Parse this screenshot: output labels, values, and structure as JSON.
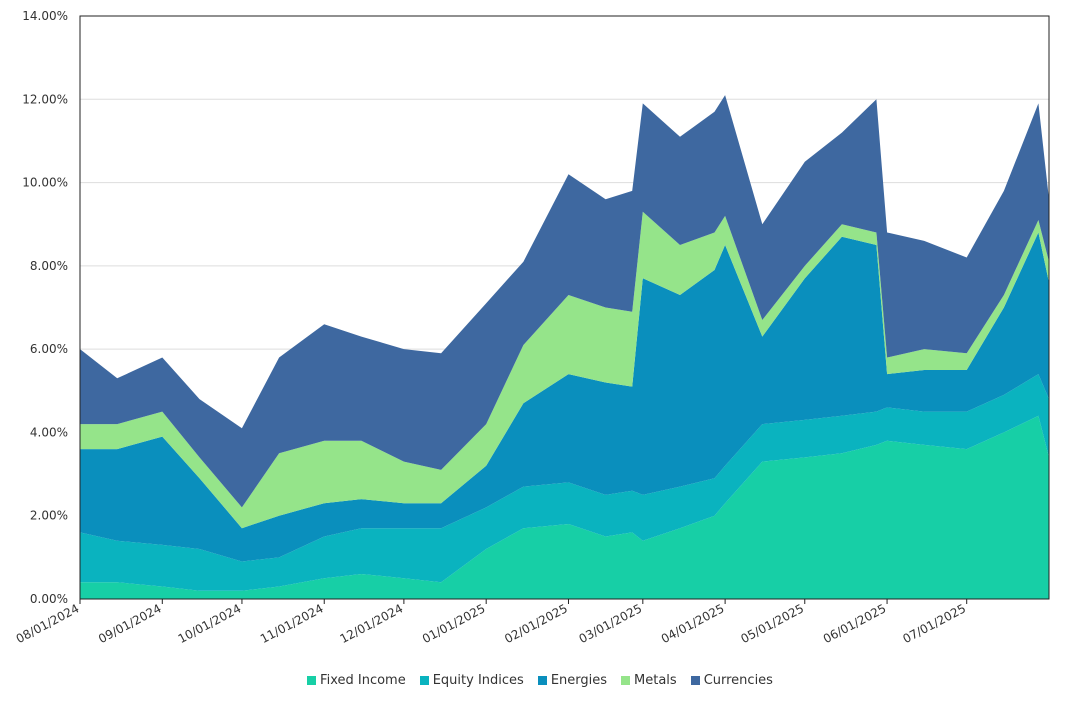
{
  "chart_data": {
    "type": "area",
    "stacked": true,
    "title": "",
    "xlabel": "",
    "ylabel": "",
    "ylim": [
      0,
      14
    ],
    "y_ticks": [
      "0.00%",
      "2.00%",
      "4.00%",
      "6.00%",
      "8.00%",
      "10.00%",
      "12.00%",
      "14.00%"
    ],
    "x_ticks": [
      "08/01/2024",
      "09/01/2024",
      "10/01/2024",
      "11/01/2024",
      "12/01/2024",
      "01/01/2025",
      "02/01/2025",
      "03/01/2025",
      "04/01/2025",
      "05/01/2025",
      "06/01/2025",
      "07/01/2025"
    ],
    "grid": "horizontal",
    "legend_position": "bottom",
    "x": [
      "08/01/2024",
      "08/15/2024",
      "09/01/2024",
      "09/15/2024",
      "10/01/2024",
      "10/15/2024",
      "11/01/2024",
      "11/15/2024",
      "12/01/2024",
      "12/15/2024",
      "01/01/2025",
      "01/15/2025",
      "02/01/2025",
      "02/15/2025",
      "02/25/2025",
      "03/01/2025",
      "03/15/2025",
      "03/28/2025",
      "04/01/2025",
      "04/15/2025",
      "05/01/2025",
      "05/15/2025",
      "05/28/2025",
      "06/01/2025",
      "06/15/2025",
      "07/01/2025",
      "07/15/2025",
      "07/28/2025",
      "08/01/2025"
    ],
    "series": [
      {
        "name": "Fixed Income",
        "color": "#17cfa6",
        "values": [
          0.4,
          0.4,
          0.3,
          0.2,
          0.2,
          0.3,
          0.5,
          0.6,
          0.5,
          0.4,
          1.2,
          1.7,
          1.8,
          1.5,
          1.6,
          1.4,
          1.7,
          2.0,
          2.3,
          3.3,
          3.4,
          3.5,
          3.7,
          3.8,
          3.7,
          3.6,
          4.0,
          4.4,
          3.4
        ]
      },
      {
        "name": "Equity Indices",
        "color": "#0ab3bf",
        "values": [
          1.2,
          1.0,
          1.0,
          1.0,
          0.7,
          0.7,
          1.0,
          1.1,
          1.2,
          1.3,
          1.0,
          1.0,
          1.0,
          1.0,
          1.0,
          1.1,
          1.0,
          0.9,
          0.9,
          0.9,
          0.9,
          0.9,
          0.8,
          0.8,
          0.8,
          0.9,
          0.9,
          1.0,
          1.4
        ]
      },
      {
        "name": "Energies",
        "color": "#0a8fbd",
        "values": [
          2.0,
          2.2,
          2.6,
          1.7,
          0.8,
          1.0,
          0.8,
          0.7,
          0.6,
          0.6,
          1.0,
          2.0,
          2.6,
          2.7,
          2.5,
          5.2,
          4.6,
          5.0,
          5.3,
          2.1,
          3.4,
          4.3,
          4.0,
          0.8,
          1.0,
          1.0,
          2.1,
          3.4,
          2.8
        ]
      },
      {
        "name": "Metals",
        "color": "#95e48a",
        "values": [
          0.6,
          0.6,
          0.6,
          0.5,
          0.5,
          1.5,
          1.5,
          1.4,
          1.0,
          0.8,
          1.0,
          1.4,
          1.9,
          1.8,
          1.8,
          1.6,
          1.2,
          0.9,
          0.7,
          0.4,
          0.3,
          0.3,
          0.3,
          0.4,
          0.5,
          0.4,
          0.3,
          0.3,
          0.5
        ]
      },
      {
        "name": "Currencies",
        "color": "#3e68a0",
        "values": [
          1.8,
          1.1,
          1.3,
          1.4,
          1.9,
          2.3,
          2.8,
          2.5,
          2.7,
          2.8,
          2.9,
          2.0,
          2.9,
          2.6,
          2.9,
          2.6,
          2.6,
          2.9,
          2.9,
          2.3,
          2.5,
          2.2,
          3.2,
          3.0,
          2.6,
          2.3,
          2.5,
          2.8,
          1.5
        ]
      }
    ]
  }
}
